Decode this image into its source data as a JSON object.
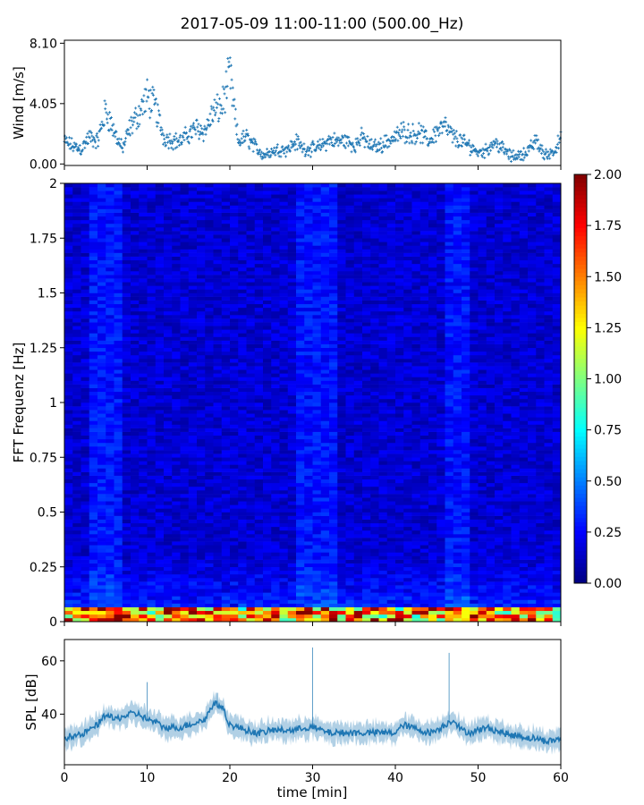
{
  "title": "2017-05-09 11:00-11:00 (500.00_Hz)",
  "chart_data": [
    {
      "type": "scatter",
      "name": "wind",
      "ylabel": "Wind [m/s]",
      "xlim": [
        0,
        60
      ],
      "ylim": [
        -0.1,
        8.3
      ],
      "yticks": [
        0.0,
        4.05,
        8.1
      ],
      "ytick_labels": [
        "0.00",
        "4.05",
        "8.10"
      ],
      "marker": "+",
      "color": "#1f77b4",
      "x": [
        0,
        1,
        2,
        3,
        4,
        5,
        6,
        7,
        8,
        9,
        10,
        11,
        12,
        13,
        14,
        15,
        16,
        17,
        18,
        19,
        20,
        21,
        22,
        23,
        24,
        25,
        26,
        27,
        28,
        29,
        30,
        31,
        32,
        33,
        34,
        35,
        36,
        37,
        38,
        39,
        40,
        41,
        42,
        43,
        44,
        45,
        46,
        47,
        48,
        49,
        50,
        51,
        52,
        53,
        54,
        55,
        56,
        57,
        58,
        59,
        60
      ],
      "y": [
        1.5,
        1.2,
        1.0,
        1.8,
        1.5,
        3.6,
        2.2,
        1.0,
        2.5,
        3.4,
        4.5,
        3.8,
        1.8,
        1.6,
        1.5,
        2.0,
        2.4,
        2.2,
        3.5,
        3.8,
        6.0,
        1.5,
        1.8,
        1.2,
        0.6,
        0.8,
        1.0,
        1.0,
        1.5,
        1.0,
        1.0,
        1.2,
        1.6,
        1.5,
        1.6,
        1.2,
        1.8,
        1.2,
        1.2,
        1.5,
        1.8,
        2.2,
        2.0,
        2.1,
        1.5,
        2.2,
        2.5,
        1.8,
        1.5,
        1.2,
        0.8,
        0.9,
        1.5,
        1.0,
        0.5,
        0.6,
        0.8,
        1.6,
        0.6,
        0.8,
        1.6
      ]
    },
    {
      "type": "heatmap",
      "name": "spectrogram",
      "ylabel": "FFT Frequenz [Hz]",
      "xlim": [
        0,
        60
      ],
      "ylim": [
        0,
        2
      ],
      "yticks": [
        0,
        0.25,
        0.5,
        0.75,
        1,
        1.25,
        1.5,
        1.75,
        2
      ],
      "ytick_labels": [
        "0",
        "0.25",
        "0.5",
        "0.75",
        "1",
        "1.25",
        "1.5",
        "1.75",
        "2"
      ],
      "colormap": "jet",
      "clim": [
        0.0,
        2.0
      ],
      "colorbar_ticks": [
        "0.00",
        "0.25",
        "0.50",
        "0.75",
        "1.00",
        "1.25",
        "1.50",
        "1.75",
        "2.00"
      ],
      "bright_columns_min": [
        [
          3,
          7
        ],
        [
          28,
          33
        ],
        [
          46,
          49
        ]
      ],
      "low_freq_peak": {
        "freq": 0.02,
        "level": 1.7
      }
    },
    {
      "type": "line",
      "name": "spl",
      "ylabel": "SPL [dB]",
      "xlabel": "time [min]",
      "xlim": [
        0,
        60
      ],
      "ylim": [
        21,
        68
      ],
      "yticks": [
        40,
        60
      ],
      "ytick_labels": [
        "40",
        "60"
      ],
      "xticks": [
        0,
        10,
        20,
        30,
        40,
        50,
        60
      ],
      "xtick_labels": [
        "0",
        "10",
        "20",
        "30",
        "40",
        "50",
        "60"
      ],
      "color": "#1f77b4",
      "x": [
        0,
        1,
        2,
        3,
        4,
        5,
        6,
        7,
        8,
        9,
        10,
        11,
        12,
        13,
        14,
        15,
        16,
        17,
        18,
        19,
        20,
        21,
        22,
        23,
        24,
        25,
        26,
        27,
        28,
        29,
        30,
        31,
        32,
        33,
        34,
        35,
        36,
        37,
        38,
        39,
        40,
        41,
        42,
        43,
        44,
        45,
        46,
        47,
        48,
        49,
        50,
        51,
        52,
        53,
        54,
        55,
        56,
        57,
        58,
        59,
        60
      ],
      "y": [
        31,
        32,
        32,
        34,
        36,
        40,
        38,
        39,
        40,
        40,
        38,
        37,
        35,
        35,
        35,
        36,
        37,
        38,
        44,
        43,
        36,
        35,
        34,
        33,
        33,
        34,
        34,
        34,
        34,
        35,
        35,
        34,
        33,
        33,
        33,
        33,
        33,
        33,
        33,
        33,
        33,
        36,
        35,
        34,
        33,
        34,
        36,
        38,
        34,
        33,
        34,
        35,
        34,
        33,
        32,
        32,
        31,
        31,
        30,
        30,
        31
      ],
      "spikes": [
        [
          30,
          65
        ],
        [
          46.5,
          63
        ],
        [
          10,
          52
        ],
        [
          18.5,
          48
        ]
      ]
    }
  ]
}
